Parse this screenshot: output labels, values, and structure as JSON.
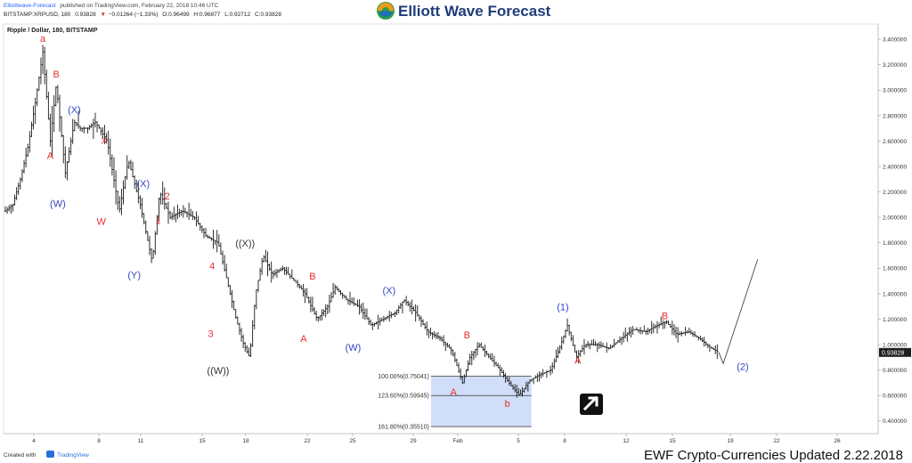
{
  "header": {
    "publisher": "Elliottwave-Forecast",
    "published_text": "published on TradingView.com, February 22, 2018 10:46 UTC",
    "ohlc_symbol": "BITSTAMP:XRPUSD, 180",
    "ohlc_last": "0.93828",
    "ohlc_change": "−0.01264 (−1.33%)",
    "ohlc_o": "O:0.96499",
    "ohlc_h": "H:0.96877",
    "ohlc_l": "L:0.92712",
    "ohlc_c": "C:0.93828",
    "logo_text": "Elliott Wave Forecast"
  },
  "footer": {
    "created_with": "Created with",
    "tradingview": "TradingView",
    "update_text": "EWF Crypto-Currencies Updated 2.22.2018"
  },
  "colors": {
    "red_label": "#e53030",
    "blue_label": "#3445c8",
    "fib_box": "#c9d8f8",
    "price_tag": "#1f1f1f"
  },
  "chart_data": {
    "type": "ohlc",
    "title": "Ripple / Dollar, 180, BITSTAMP",
    "y_ticks": [
      "0.400000",
      "0.600000",
      "0.800000",
      "1.000000",
      "1.200000",
      "1.400000",
      "1.600000",
      "1.800000",
      "2.000000",
      "2.200000",
      "2.400000",
      "2.600000",
      "2.800000",
      "3.000000",
      "3.200000",
      "3.400000"
    ],
    "ylim": [
      0.3,
      3.52
    ],
    "x_ticks": [
      "4",
      "8",
      "11",
      "15",
      "18",
      "22",
      "25",
      "29",
      "Feb",
      "5",
      "8",
      "12",
      "15",
      "19",
      "22",
      "26"
    ],
    "last_price": "0.93828",
    "price_path": [
      {
        "d": 0,
        "p": 2.05
      },
      {
        "d": 0.5,
        "p": 2.1
      },
      {
        "d": 1.0,
        "p": 2.3
      },
      {
        "d": 1.5,
        "p": 2.55
      },
      {
        "d": 2.0,
        "p": 2.9
      },
      {
        "d": 2.5,
        "p": 3.3
      },
      {
        "d": 3.0,
        "p": 2.6
      },
      {
        "d": 3.4,
        "p": 3.05
      },
      {
        "d": 4.0,
        "p": 2.35
      },
      {
        "d": 4.6,
        "p": 2.75
      },
      {
        "d": 5.0,
        "p": 2.7
      },
      {
        "d": 5.5,
        "p": 2.7
      },
      {
        "d": 6.0,
        "p": 2.75
      },
      {
        "d": 6.8,
        "p": 2.6
      },
      {
        "d": 7.6,
        "p": 2.05
      },
      {
        "d": 8.2,
        "p": 2.45
      },
      {
        "d": 9.0,
        "p": 2.1
      },
      {
        "d": 9.8,
        "p": 1.65
      },
      {
        "d": 10.3,
        "p": 2.2
      },
      {
        "d": 11.0,
        "p": 2.0
      },
      {
        "d": 11.8,
        "p": 2.05
      },
      {
        "d": 12.6,
        "p": 2.0
      },
      {
        "d": 13.4,
        "p": 1.85
      },
      {
        "d": 14.2,
        "p": 1.8
      },
      {
        "d": 15.0,
        "p": 1.4
      },
      {
        "d": 15.4,
        "p": 1.2
      },
      {
        "d": 15.9,
        "p": 1.0
      },
      {
        "d": 16.3,
        "p": 0.9
      },
      {
        "d": 16.7,
        "p": 1.4
      },
      {
        "d": 17.2,
        "p": 1.7
      },
      {
        "d": 17.8,
        "p": 1.55
      },
      {
        "d": 18.5,
        "p": 1.6
      },
      {
        "d": 19.3,
        "p": 1.5
      },
      {
        "d": 20.0,
        "p": 1.4
      },
      {
        "d": 20.8,
        "p": 1.2
      },
      {
        "d": 21.5,
        "p": 1.3
      },
      {
        "d": 22.0,
        "p": 1.45
      },
      {
        "d": 22.8,
        "p": 1.35
      },
      {
        "d": 23.6,
        "p": 1.3
      },
      {
        "d": 24.4,
        "p": 1.15
      },
      {
        "d": 25.2,
        "p": 1.2
      },
      {
        "d": 26.0,
        "p": 1.25
      },
      {
        "d": 26.6,
        "p": 1.35
      },
      {
        "d": 27.4,
        "p": 1.25
      },
      {
        "d": 28.2,
        "p": 1.1
      },
      {
        "d": 29.0,
        "p": 1.05
      },
      {
        "d": 29.8,
        "p": 0.95
      },
      {
        "d": 30.5,
        "p": 0.7
      },
      {
        "d": 31.0,
        "p": 0.9
      },
      {
        "d": 31.6,
        "p": 1.0
      },
      {
        "d": 32.3,
        "p": 0.9
      },
      {
        "d": 33.0,
        "p": 0.8
      },
      {
        "d": 33.6,
        "p": 0.7
      },
      {
        "d": 34.3,
        "p": 0.6
      },
      {
        "d": 35.0,
        "p": 0.72
      },
      {
        "d": 35.6,
        "p": 0.76
      },
      {
        "d": 36.4,
        "p": 0.8
      },
      {
        "d": 37.0,
        "p": 0.98
      },
      {
        "d": 37.5,
        "p": 1.15
      },
      {
        "d": 38.1,
        "p": 0.9
      },
      {
        "d": 38.7,
        "p": 1.0
      },
      {
        "d": 39.5,
        "p": 1.0
      },
      {
        "d": 40.3,
        "p": 0.97
      },
      {
        "d": 41.1,
        "p": 1.05
      },
      {
        "d": 41.9,
        "p": 1.12
      },
      {
        "d": 42.7,
        "p": 1.1
      },
      {
        "d": 43.5,
        "p": 1.15
      },
      {
        "d": 44.1,
        "p": 1.18
      },
      {
        "d": 44.8,
        "p": 1.08
      },
      {
        "d": 45.6,
        "p": 1.1
      },
      {
        "d": 46.3,
        "p": 1.05
      },
      {
        "d": 47.0,
        "p": 0.98
      },
      {
        "d": 47.6,
        "p": 0.94
      }
    ],
    "projection": [
      {
        "d": 47.9,
        "p": 0.85
      },
      {
        "d": 50.2,
        "p": 1.67
      }
    ],
    "wave_labels": [
      {
        "text": "a",
        "color": "red",
        "d": 2.5,
        "p": 3.38
      },
      {
        "text": "B",
        "color": "red",
        "d": 3.4,
        "p": 3.1
      },
      {
        "text": "A",
        "color": "red",
        "d": 3.0,
        "p": 2.46
      },
      {
        "text": "(W)",
        "color": "blue",
        "d": 3.5,
        "p": 2.08
      },
      {
        "text": "(X)",
        "color": "blue",
        "d": 4.6,
        "p": 2.82
      },
      {
        "text": "X",
        "color": "red",
        "d": 6.6,
        "p": 2.58
      },
      {
        "text": "W",
        "color": "red",
        "d": 6.4,
        "p": 1.94
      },
      {
        "text": "(X)",
        "color": "blue",
        "d": 9.2,
        "p": 2.24
      },
      {
        "text": "2",
        "color": "red",
        "d": 10.8,
        "p": 2.14
      },
      {
        "text": "1",
        "color": "red",
        "d": 10.2,
        "p": 1.95
      },
      {
        "text": "(Y)",
        "color": "blue",
        "d": 8.6,
        "p": 1.52
      },
      {
        "text": "((X))",
        "color": "black",
        "d": 16.0,
        "p": 1.77
      },
      {
        "text": "4",
        "color": "red",
        "d": 13.8,
        "p": 1.59
      },
      {
        "text": "3",
        "color": "red",
        "d": 13.7,
        "p": 1.06
      },
      {
        "text": "((W))",
        "color": "black",
        "d": 14.2,
        "p": 0.77
      },
      {
        "text": "B",
        "color": "red",
        "d": 20.5,
        "p": 1.51
      },
      {
        "text": "A",
        "color": "red",
        "d": 19.9,
        "p": 1.02
      },
      {
        "text": "(X)",
        "color": "blue",
        "d": 25.6,
        "p": 1.4
      },
      {
        "text": "(W)",
        "color": "blue",
        "d": 23.2,
        "p": 0.95
      },
      {
        "text": "B",
        "color": "red",
        "d": 30.8,
        "p": 1.05
      },
      {
        "text": "A",
        "color": "red",
        "d": 29.9,
        "p": 0.6
      },
      {
        "text": "b",
        "color": "red",
        "d": 33.5,
        "p": 0.51
      },
      {
        "text": "(1)",
        "color": "blue",
        "d": 37.2,
        "p": 1.27
      },
      {
        "text": "A",
        "color": "red",
        "d": 38.2,
        "p": 0.85
      },
      {
        "text": "B",
        "color": "red",
        "d": 44.0,
        "p": 1.2
      },
      {
        "text": "(2)",
        "color": "blue",
        "d": 49.2,
        "p": 0.8
      }
    ],
    "fib_levels": [
      {
        "label": "100.00%(0.75041)",
        "p": 0.75041
      },
      {
        "label": "123.60%(0.59945)",
        "p": 0.59945
      },
      {
        "label": "161.80%(0.35510)",
        "p": 0.3551
      }
    ],
    "fib_range": {
      "d_start": 28.4,
      "d_end": 35.1
    }
  }
}
